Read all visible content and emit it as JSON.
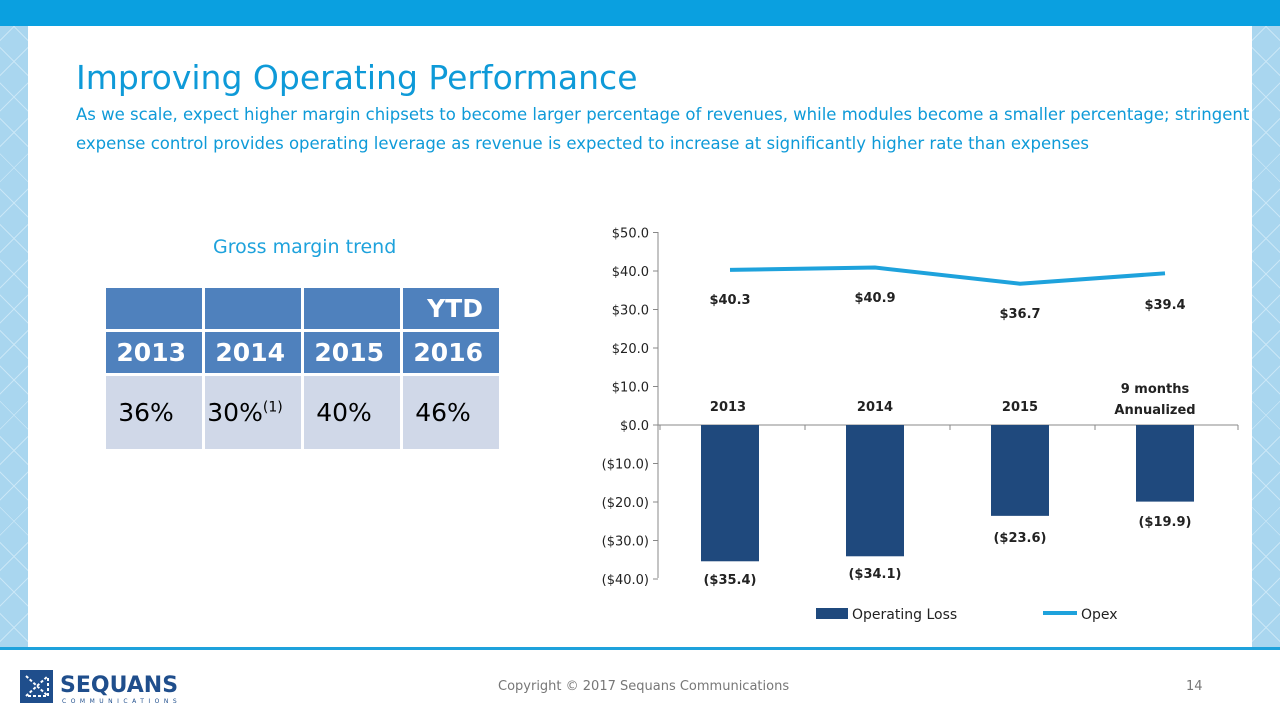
{
  "title": "Improving Operating Performance",
  "subtitle": "As we scale, expect higher margin chipsets to become larger percentage of revenues, while modules become a smaller percentage; stringent expense control provides operating leverage as revenue is expected to increase at significantly higher rate than expenses",
  "gross_margin": {
    "title": "Gross margin trend",
    "headers": [
      [
        "",
        "2013"
      ],
      [
        "",
        "2014"
      ],
      [
        "",
        "2015"
      ],
      [
        "YTD",
        "2016"
      ]
    ],
    "values": [
      "36%",
      "30%",
      "40%",
      "46%"
    ],
    "footnote_mark": "(1)"
  },
  "chart_data": {
    "type": "bar+line",
    "categories": [
      "2013",
      "2014",
      "2015",
      "9 months Annualized"
    ],
    "series": [
      {
        "name": "Operating Loss",
        "type": "bar",
        "values": [
          -35.4,
          -34.1,
          -23.6,
          -19.9
        ],
        "labels": [
          "($35.4)",
          "($34.1)",
          "($23.6)",
          "($19.9)"
        ],
        "color": "#1f497d"
      },
      {
        "name": "Opex",
        "type": "line",
        "values": [
          40.3,
          40.9,
          36.7,
          39.4
        ],
        "labels": [
          "$40.3",
          "$40.9",
          "$36.7",
          "$39.4"
        ],
        "color": "#1ea2dc"
      }
    ],
    "ylim": [
      -40,
      50
    ],
    "yticks": [
      "$50.0",
      "$40.0",
      "$30.0",
      "$20.0",
      "$10.0",
      "$0.0",
      "($10.0)",
      "($20.0)",
      "($30.0)",
      "($40.0)"
    ],
    "legend": "bottom"
  },
  "footer": {
    "copyright": "Copyright © 2017 Sequans Communications",
    "page": "14",
    "logo": "SEQUANS COMMUNICATIONS"
  }
}
